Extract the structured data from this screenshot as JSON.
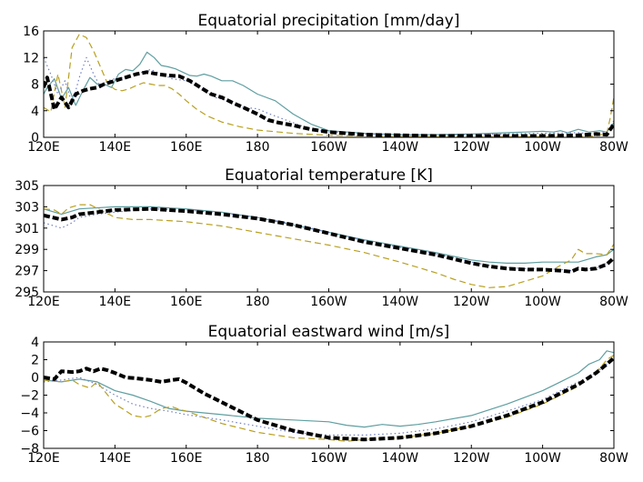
{
  "chart_data": [
    {
      "type": "line",
      "title": "Equatorial precipitation [mm/day]",
      "xlabel": "",
      "ylabel": "",
      "xlim": [
        120,
        280
      ],
      "ylim": [
        0,
        16
      ],
      "xticks": [
        120,
        140,
        160,
        180,
        200,
        220,
        240,
        260,
        280
      ],
      "xticklabels": [
        "120E",
        "140E",
        "160E",
        "180",
        "160W",
        "140W",
        "120W",
        "100W",
        "80W"
      ],
      "yticks": [
        0,
        4,
        8,
        12,
        16
      ],
      "yticklabels": [
        "0",
        "4",
        "8",
        "12",
        "16"
      ],
      "grid": false,
      "legend": "none",
      "series": [
        {
          "color": "#5f9ea0",
          "style": "solid",
          "width": 1.2,
          "x": [
            120,
            121,
            123,
            125,
            127,
            129,
            131,
            133,
            135,
            137,
            139,
            141,
            143,
            145,
            147,
            149,
            151,
            153,
            155,
            157,
            159,
            161,
            163,
            165,
            167,
            170,
            173,
            176,
            180,
            185,
            190,
            195,
            200,
            210,
            220,
            230,
            240,
            250,
            255,
            260,
            263,
            265,
            267,
            270,
            273,
            276,
            278,
            279,
            280
          ],
          "y": [
            6.5,
            7.5,
            8.8,
            5.8,
            7.5,
            4.8,
            7,
            9,
            8,
            8,
            7.5,
            9.5,
            10.2,
            10,
            11,
            12.8,
            12,
            10.8,
            10.6,
            10.3,
            9.8,
            9.3,
            9.2,
            9.5,
            9.2,
            8.5,
            8.5,
            7.8,
            6.5,
            5.5,
            3.5,
            2,
            1,
            0.6,
            0.4,
            0.4,
            0.5,
            0.7,
            0.8,
            0.9,
            0.8,
            1,
            0.7,
            1.2,
            0.8,
            1,
            0.8,
            1.5,
            2.2
          ]
        },
        {
          "color": "#b8a020",
          "style": "dashed",
          "width": 1.2,
          "x": [
            120,
            122,
            124,
            126,
            128,
            130,
            132,
            134,
            136,
            138,
            140,
            142,
            144,
            146,
            148,
            150,
            152,
            154,
            156,
            158,
            160,
            163,
            166,
            170,
            175,
            180,
            190,
            200,
            210,
            220,
            230,
            240,
            250,
            260,
            270,
            275,
            278,
            279,
            280
          ],
          "y": [
            4.5,
            3.8,
            9.5,
            4.5,
            13.5,
            15.5,
            15,
            13,
            10.5,
            8,
            7.2,
            7,
            7.3,
            7.8,
            8.2,
            8,
            7.8,
            7.8,
            7.3,
            6.5,
            5.5,
            4.2,
            3.2,
            2.3,
            1.6,
            1.1,
            0.6,
            0.3,
            0.2,
            0.1,
            0.1,
            0.1,
            0.1,
            0.1,
            0.1,
            0.2,
            0.6,
            3,
            6
          ]
        },
        {
          "color": "#7080c0",
          "style": "dotted",
          "width": 1.2,
          "x": [
            120,
            122,
            124,
            126,
            128,
            130,
            132,
            134,
            136,
            138,
            140,
            143,
            146,
            150,
            153,
            156,
            160,
            164,
            168,
            172,
            176,
            180,
            183,
            186,
            190,
            195,
            200,
            210,
            220,
            230,
            240,
            250,
            260,
            270,
            275,
            278,
            280
          ],
          "y": [
            12,
            9.5,
            6.5,
            8.5,
            5,
            9,
            12,
            9.5,
            7.5,
            8.5,
            8.8,
            9,
            9.5,
            10.2,
            9.5,
            8.8,
            8.5,
            7.5,
            6,
            5.5,
            4.5,
            4.3,
            3.6,
            3,
            2.2,
            1.2,
            0.8,
            0.5,
            0.3,
            0.3,
            0.4,
            0.5,
            0.6,
            0.7,
            0.5,
            0.8,
            2.5
          ]
        },
        {
          "color": "#000000",
          "style": "dashed",
          "width": 4,
          "x": [
            120,
            121,
            123,
            125,
            127,
            129,
            131,
            133,
            135,
            137,
            140,
            143,
            146,
            149,
            152,
            155,
            158,
            161,
            164,
            167,
            170,
            173,
            176,
            180,
            183,
            186,
            190,
            195,
            200,
            210,
            220,
            230,
            240,
            250,
            260,
            270,
            275,
            278,
            280
          ],
          "y": [
            7.5,
            9,
            4.2,
            6,
            4.5,
            6.5,
            7,
            7.3,
            7.5,
            8,
            8.5,
            9,
            9.5,
            9.8,
            9.5,
            9.3,
            9.2,
            8.5,
            7.5,
            6.5,
            6,
            5.2,
            4.5,
            3.5,
            2.6,
            2.2,
            1.8,
            1.2,
            0.8,
            0.4,
            0.3,
            0.2,
            0.2,
            0.2,
            0.2,
            0.3,
            0.5,
            0.4,
            2
          ]
        }
      ]
    },
    {
      "type": "line",
      "title": "Equatorial temperature [K]",
      "xlabel": "",
      "ylabel": "",
      "xlim": [
        120,
        280
      ],
      "ylim": [
        295,
        305
      ],
      "xticks": [
        120,
        140,
        160,
        180,
        200,
        220,
        240,
        260,
        280
      ],
      "xticklabels": [
        "120E",
        "140E",
        "160E",
        "180",
        "160W",
        "140W",
        "120W",
        "100W",
        "80W"
      ],
      "yticks": [
        295,
        297,
        299,
        301,
        303,
        305
      ],
      "yticklabels": [
        "295",
        "297",
        "299",
        "301",
        "303",
        "305"
      ],
      "grid": false,
      "legend": "none",
      "series": [
        {
          "color": "#5f9ea0",
          "style": "solid",
          "width": 1.2,
          "x": [
            120,
            125,
            130,
            140,
            150,
            160,
            170,
            180,
            190,
            200,
            210,
            220,
            230,
            240,
            245,
            250,
            255,
            260,
            265,
            270,
            272,
            275,
            278,
            280
          ],
          "y": [
            302.8,
            302.3,
            302.8,
            303,
            303,
            302.8,
            302.5,
            302,
            301.3,
            300.6,
            299.9,
            299.3,
            298.7,
            298,
            297.8,
            297.7,
            297.7,
            297.8,
            297.8,
            297.8,
            298,
            298.3,
            298.5,
            299
          ]
        },
        {
          "color": "#b8a020",
          "style": "dashed",
          "width": 1.2,
          "x": [
            120,
            123,
            125,
            127,
            130,
            133,
            136,
            140,
            145,
            150,
            155,
            160,
            170,
            180,
            190,
            200,
            210,
            220,
            230,
            235,
            240,
            245,
            250,
            255,
            260,
            265,
            268,
            270,
            272,
            275,
            278,
            280
          ],
          "y": [
            302.8,
            302.7,
            302.3,
            302.9,
            303.2,
            303.2,
            302.7,
            302,
            301.8,
            301.8,
            301.7,
            301.6,
            301.2,
            300.6,
            300,
            299.4,
            298.7,
            297.8,
            296.8,
            296.2,
            295.7,
            295.4,
            295.5,
            296,
            296.5,
            297.5,
            298,
            299,
            298.6,
            298.6,
            298.5,
            299.5
          ]
        },
        {
          "color": "#7080c0",
          "style": "dotted",
          "width": 1.2,
          "x": [
            120,
            125,
            128,
            130,
            135,
            140,
            150,
            160,
            170,
            180,
            190,
            200,
            210,
            220,
            230,
            240,
            245,
            250,
            255,
            260,
            265,
            268,
            270,
            272,
            275,
            278,
            280
          ],
          "y": [
            301.5,
            301,
            301.5,
            302,
            302.3,
            302.5,
            302.8,
            302.7,
            302.4,
            302,
            301.4,
            300.6,
            299.8,
            299.2,
            298.6,
            297.8,
            297.5,
            297.3,
            297.2,
            297.2,
            297.1,
            297,
            297.3,
            297.2,
            297.2,
            297.7,
            298
          ]
        },
        {
          "color": "#000000",
          "style": "dashed",
          "width": 4,
          "x": [
            120,
            125,
            128,
            130,
            135,
            140,
            150,
            160,
            170,
            180,
            190,
            200,
            210,
            220,
            230,
            240,
            245,
            250,
            255,
            260,
            265,
            268,
            270,
            272,
            275,
            278,
            280
          ],
          "y": [
            302.2,
            301.8,
            302,
            302.3,
            302.5,
            302.7,
            302.8,
            302.6,
            302.3,
            301.9,
            301.3,
            300.5,
            299.7,
            299.1,
            298.5,
            297.7,
            297.4,
            297.2,
            297.1,
            297.1,
            297,
            296.9,
            297.2,
            297.1,
            297.2,
            297.6,
            298.2
          ]
        }
      ]
    },
    {
      "type": "line",
      "title": "Equatorial eastward wind [m/s]",
      "xlabel": "",
      "ylabel": "",
      "xlim": [
        120,
        280
      ],
      "ylim": [
        -8,
        4
      ],
      "xticks": [
        120,
        140,
        160,
        180,
        200,
        220,
        240,
        260,
        280
      ],
      "xticklabels": [
        "120E",
        "140E",
        "160E",
        "180",
        "160W",
        "140W",
        "120W",
        "100W",
        "80W"
      ],
      "yticks": [
        -8,
        -6,
        -4,
        -2,
        0,
        2,
        4
      ],
      "yticklabels": [
        "−8",
        "−6",
        "−4",
        "−2",
        "0",
        "2",
        "4"
      ],
      "grid": false,
      "legend": "none",
      "series": [
        {
          "color": "#5f9ea0",
          "style": "solid",
          "width": 1.2,
          "x": [
            120,
            125,
            130,
            135,
            140,
            145,
            150,
            155,
            160,
            165,
            170,
            180,
            190,
            200,
            205,
            210,
            215,
            220,
            225,
            230,
            240,
            250,
            260,
            265,
            270,
            273,
            276,
            278,
            280
          ],
          "y": [
            -0.3,
            -0.5,
            -0.2,
            -0.5,
            -1.5,
            -2,
            -2.7,
            -3.5,
            -3.8,
            -4,
            -4.2,
            -4.6,
            -4.8,
            -5,
            -5.4,
            -5.6,
            -5.3,
            -5.5,
            -5.3,
            -5,
            -4.3,
            -3,
            -1.5,
            -0.5,
            0.5,
            1.5,
            2,
            3,
            2.8
          ]
        },
        {
          "color": "#b8a020",
          "style": "dashed",
          "width": 1.2,
          "x": [
            120,
            125,
            128,
            130,
            133,
            135,
            138,
            140,
            142,
            145,
            148,
            150,
            153,
            156,
            158,
            160,
            165,
            170,
            180,
            190,
            200,
            205,
            210,
            220,
            230,
            240,
            250,
            260,
            265,
            270,
            273,
            276,
            278,
            280
          ],
          "y": [
            -0.3,
            -0.5,
            -0.3,
            -0.8,
            -1.2,
            -0.5,
            -2,
            -3,
            -3.5,
            -4.3,
            -4.5,
            -4.3,
            -3.5,
            -3.3,
            -3.6,
            -3.8,
            -4.5,
            -5.2,
            -6.2,
            -6.8,
            -7,
            -7.2,
            -7,
            -6.8,
            -6.3,
            -5.5,
            -4.5,
            -3,
            -2,
            -1,
            0,
            1,
            2,
            2.5
          ]
        },
        {
          "color": "#7080c0",
          "style": "dotted",
          "width": 1.2,
          "x": [
            120,
            125,
            130,
            135,
            140,
            145,
            150,
            155,
            160,
            170,
            180,
            190,
            200,
            210,
            220,
            230,
            240,
            250,
            260,
            265,
            270,
            275,
            278,
            280
          ],
          "y": [
            -0.5,
            -0.3,
            0,
            -0.8,
            -2,
            -3,
            -3.5,
            -3.8,
            -4.2,
            -4.8,
            -5.5,
            -6.2,
            -6.5,
            -6.5,
            -6.3,
            -5.8,
            -5,
            -3.8,
            -2.5,
            -1.5,
            -0.5,
            0.5,
            1.5,
            2
          ]
        },
        {
          "color": "#000000",
          "style": "dashed",
          "width": 4,
          "x": [
            120,
            123,
            125,
            128,
            130,
            132,
            134,
            136,
            138,
            140,
            143,
            146,
            150,
            153,
            156,
            158,
            160,
            165,
            170,
            175,
            180,
            190,
            200,
            210,
            220,
            230,
            240,
            250,
            260,
            265,
            270,
            275,
            278,
            280
          ],
          "y": [
            0,
            -0.2,
            0.7,
            0.6,
            0.7,
            1,
            0.7,
            1,
            0.8,
            0.5,
            0,
            -0.1,
            -0.3,
            -0.5,
            -0.3,
            -0.2,
            -0.6,
            -1.8,
            -2.8,
            -3.8,
            -4.8,
            -6,
            -6.8,
            -7,
            -6.8,
            -6.3,
            -5.5,
            -4.3,
            -2.8,
            -1.8,
            -0.8,
            0.5,
            1.5,
            2.2
          ]
        }
      ]
    }
  ]
}
